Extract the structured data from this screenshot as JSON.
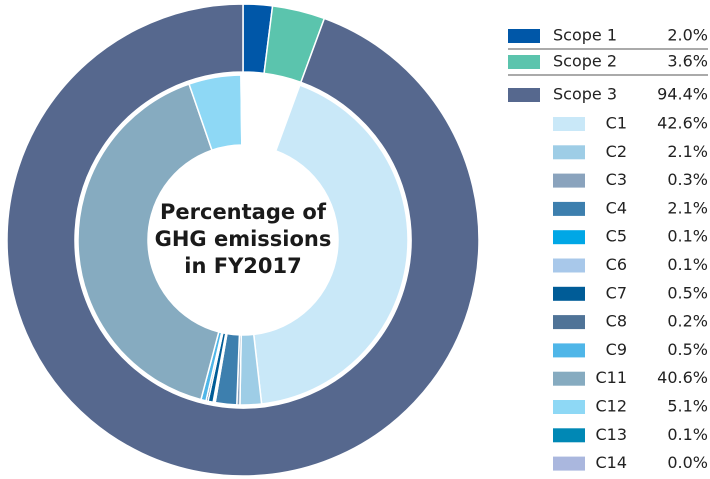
{
  "chart_data": {
    "type": "donut",
    "title": [
      "Percentage of",
      "GHG emissions",
      "in FY2017"
    ],
    "outer": {
      "categories": [
        "Scope 1",
        "Scope 2",
        "Scope 3"
      ],
      "values": [
        2.0,
        3.6,
        94.4
      ],
      "value_labels": [
        "2.0%",
        "3.6%",
        "94.4%"
      ],
      "colors": [
        "#0057a8",
        "#5bc4ad",
        "#56688e"
      ]
    },
    "inner": {
      "categories": [
        "C1",
        "C2",
        "C3",
        "C4",
        "C5",
        "C6",
        "C7",
        "C8",
        "C9",
        "C11",
        "C12",
        "C13",
        "C14"
      ],
      "values": [
        42.6,
        2.1,
        0.3,
        2.1,
        0.1,
        0.1,
        0.5,
        0.2,
        0.5,
        40.6,
        5.1,
        0.1,
        0.0
      ],
      "value_labels": [
        "42.6%",
        "2.1%",
        "0.3%",
        "2.1%",
        "0.1%",
        "0.1%",
        "0.5%",
        "0.2%",
        "0.5%",
        "40.6%",
        "5.1%",
        "0.1%",
        "0.0%"
      ],
      "colors": [
        "#c9e8f8",
        "#9ecde6",
        "#8aa3bd",
        "#3d7fae",
        "#00a7e6",
        "#a8c8ea",
        "#005c97",
        "#4f7397",
        "#4fb6e8",
        "#86abc0",
        "#8ed8f5",
        "#0088b5",
        "#aab7de"
      ]
    }
  }
}
